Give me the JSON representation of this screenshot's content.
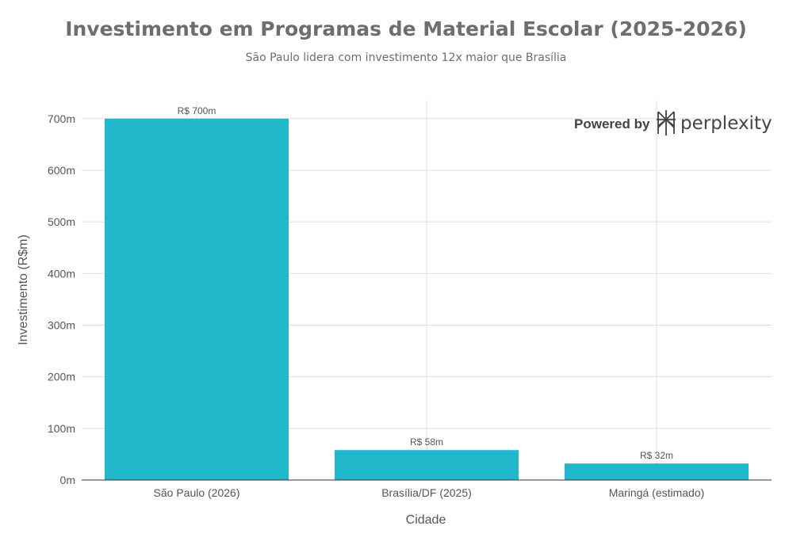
{
  "chart_data": {
    "type": "bar",
    "title": "Investimento em Programas de Material Escolar (2025-2026)",
    "subtitle": "São Paulo lidera com investimento 12x maior que Brasília",
    "xlabel": "Cidade",
    "ylabel": "Investimento (R$m)",
    "categories": [
      "São Paulo (2026)",
      "Brasília/DF (2025)",
      "Maringá (estimado)"
    ],
    "values": [
      700,
      58,
      32
    ],
    "data_labels": [
      "R$ 700m",
      "R$ 58m",
      "R$ 32m"
    ],
    "ylim": [
      0,
      735
    ],
    "yticks": [
      0,
      100,
      200,
      300,
      400,
      500,
      600,
      700
    ],
    "ytick_labels": [
      "0m",
      "100m",
      "200m",
      "300m",
      "400m",
      "500m",
      "600m",
      "700m"
    ],
    "grid": true,
    "legend": "none",
    "bar_color": "#22b8cc"
  },
  "watermark": {
    "label": "Powered by",
    "brand": "perplexity",
    "icon": "perplexity-logo-icon"
  }
}
